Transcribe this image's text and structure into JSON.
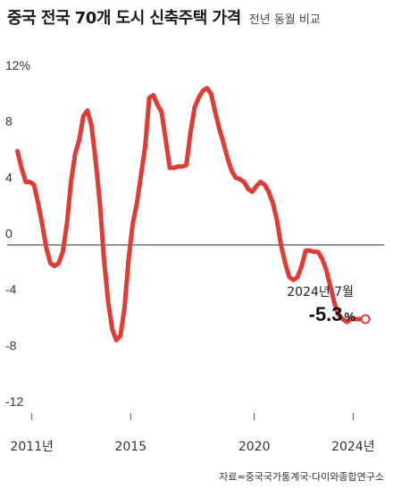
{
  "header": {
    "title": "중국 전국 70개 도시 신축주택 가격",
    "subtitle": "전년 동월 비교"
  },
  "source": "자료=중국국가통계국·다이와종합연구소",
  "annotation": {
    "date_label": "2024년 7월",
    "value_label": "-5.3",
    "unit_label": "%"
  },
  "colors": {
    "line": "#e03c35",
    "zero_line": "#555555",
    "grid": "#cccccc"
  },
  "chart_data": {
    "type": "line",
    "title": "중국 전국 70개 도시 신축주택 가격",
    "subtitle": "전년 동월 비교",
    "ylim": [
      -12,
      12
    ],
    "y_ticks": [
      12,
      8,
      4,
      0,
      -4,
      -8,
      -12
    ],
    "y_tick_labels": [
      "12%",
      "8",
      "4",
      "0",
      "-4",
      "-8",
      "-12"
    ],
    "x_ticks": [
      2011,
      2015,
      2020,
      2024
    ],
    "x_tick_labels": [
      "2011년",
      "2015",
      "2020",
      "2024년"
    ],
    "xlim": [
      "2010-01",
      "2024-12"
    ],
    "grid": false,
    "series": [
      {
        "name": "",
        "x": [
          "2010-06",
          "2010-08",
          "2010-10",
          "2010-12",
          "2011-02",
          "2011-04",
          "2011-06",
          "2011-08",
          "2011-10",
          "2011-12",
          "2012-02",
          "2012-04",
          "2012-06",
          "2012-08",
          "2012-10",
          "2012-12",
          "2013-02",
          "2013-04",
          "2013-06",
          "2013-08",
          "2013-10",
          "2013-12",
          "2014-02",
          "2014-04",
          "2014-06",
          "2014-08",
          "2014-10",
          "2014-12",
          "2015-02",
          "2015-04",
          "2015-06",
          "2015-08",
          "2015-10",
          "2015-12",
          "2016-02",
          "2016-04",
          "2016-06",
          "2016-08",
          "2016-10",
          "2016-12",
          "2017-02",
          "2017-04",
          "2017-06",
          "2017-08",
          "2017-10",
          "2017-12",
          "2018-02",
          "2018-04",
          "2018-06",
          "2018-08",
          "2018-10",
          "2018-12",
          "2019-02",
          "2019-04",
          "2019-06",
          "2019-08",
          "2019-10",
          "2019-12",
          "2020-02",
          "2020-04",
          "2020-06",
          "2020-08",
          "2020-10",
          "2020-12",
          "2021-02",
          "2021-04",
          "2021-06",
          "2021-08",
          "2021-10",
          "2021-12",
          "2022-02",
          "2022-04",
          "2022-06",
          "2022-08",
          "2022-10",
          "2022-12",
          "2023-02",
          "2023-04",
          "2023-06",
          "2023-08",
          "2023-10",
          "2023-12",
          "2024-02",
          "2024-04",
          "2024-06",
          "2024-07"
        ],
        "values": [
          6.7,
          5.5,
          4.5,
          4.5,
          4.3,
          3.0,
          1.5,
          -0.2,
          -1.3,
          -1.5,
          -1.3,
          -0.5,
          1.5,
          4.5,
          6.5,
          7.5,
          9.2,
          9.6,
          8.5,
          6.0,
          3.0,
          -1.0,
          -4.0,
          -6.0,
          -6.8,
          -6.5,
          -4.5,
          -1.0,
          1.5,
          3.0,
          5.0,
          7.0,
          10.5,
          10.7,
          10.0,
          9.5,
          7.5,
          5.5,
          5.5,
          5.6,
          5.6,
          5.7,
          8.0,
          9.8,
          10.5,
          11.0,
          11.2,
          10.8,
          9.5,
          8.3,
          7.3,
          6.2,
          5.3,
          4.8,
          4.7,
          4.5,
          4.0,
          3.8,
          4.2,
          4.5,
          4.3,
          3.8,
          3.0,
          1.8,
          0.0,
          -1.3,
          -2.3,
          -2.5,
          -2.3,
          -1.5,
          -0.4,
          -0.4,
          -0.5,
          -0.5,
          -1.0,
          -1.8,
          -3.0,
          -4.2,
          -5.0,
          -5.3,
          -5.5,
          -5.3,
          -5.3,
          -5.3,
          -5.3,
          -5.3
        ]
      }
    ]
  }
}
